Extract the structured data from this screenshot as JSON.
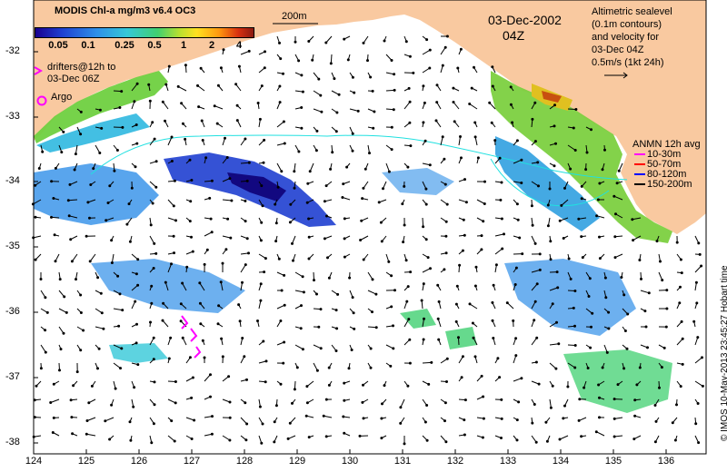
{
  "title": "MODIS Chl-a mg/m3 v6.4 OC3",
  "colorbar": {
    "ticks": [
      "0.05",
      "0.1",
      "0.25",
      "0.5",
      "1",
      "2",
      "4"
    ]
  },
  "date": "03-Dec-2002",
  "hour": "04Z",
  "scale_bar": "200m",
  "altimetry_legend": [
    "Altimetric sealevel",
    "(0.1m contours)",
    "and velocity for",
    "03-Dec 04Z",
    "0.5m/s (1kt 24h)"
  ],
  "drifters_legend": [
    "drifters@12h to",
    "03-Dec 06Z"
  ],
  "drifter_symbol": ">",
  "argo_legend": "Argo",
  "anmn": {
    "title": "ANMN 12h avg",
    "items": [
      {
        "label": "10-30m",
        "color": "#ff00ff"
      },
      {
        "label": "50-70m",
        "color": "#ff0000"
      },
      {
        "label": "80-120m",
        "color": "#0000ff"
      },
      {
        "label": "150-200m",
        "color": "#000000"
      }
    ]
  },
  "axes": {
    "x_ticks": [
      "124",
      "125",
      "126",
      "127",
      "128",
      "129",
      "130",
      "131",
      "132",
      "133",
      "134",
      "135",
      "136"
    ],
    "y_ticks": [
      "-32",
      "-33",
      "-34",
      "-35",
      "-36",
      "-37",
      "-38"
    ]
  },
  "credit": "© IMOS 10-May-2013 23:45:27 Hobart time",
  "colors": {
    "land": "#f9c9a0",
    "coast_chl_high": "#c85010",
    "drifter": "#ff00ff",
    "argo": "#ff00ff",
    "contour": "#20e0e0"
  },
  "icons": [
    "arrow-right-icon",
    "argo-circle-icon",
    "drifter-chevron-icon"
  ]
}
